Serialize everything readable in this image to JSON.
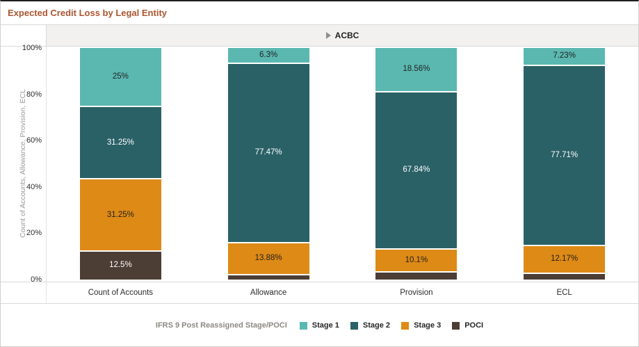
{
  "title": "Expected Credit Loss by Legal Entity",
  "header": {
    "group_label": "ACBC"
  },
  "y_axis": {
    "label": "Count of Accounts, Allowance, Provision, ECL",
    "ticks": [
      "100%",
      "80%",
      "60%",
      "40%",
      "20%",
      "0%"
    ]
  },
  "legend": {
    "title": "IFRS 9 Post Reassigned Stage/POCI",
    "position": "bottom",
    "items": [
      {
        "label": "Stage 1",
        "color": "#5bb8b1"
      },
      {
        "label": "Stage 2",
        "color": "#2a6167"
      },
      {
        "label": "Stage 3",
        "color": "#de8a16"
      },
      {
        "label": "POCI",
        "color": "#4c3e35"
      }
    ]
  },
  "chart_data": {
    "type": "bar",
    "stacked": true,
    "percent_stacked": true,
    "grid": false,
    "title": "Expected Credit Loss by Legal Entity",
    "xlabel": "",
    "ylabel": "Count of Accounts, Allowance, Provision, ECL",
    "ylim": [
      0,
      100
    ],
    "legend_position": "bottom",
    "categories": [
      "Count of Accounts",
      "Allowance",
      "Provision",
      "ECL"
    ],
    "series": [
      {
        "name": "Stage 1",
        "color": "#5bb8b1",
        "label_color": "#1f1f1f",
        "values": [
          25,
          6.3,
          18.56,
          7.23
        ],
        "labels": [
          "25%",
          "6.3%",
          "18.56%",
          "7.23%"
        ]
      },
      {
        "name": "Stage 2",
        "color": "#2a6167",
        "label_color": "#ffffff",
        "values": [
          31.25,
          77.47,
          67.84,
          77.71
        ],
        "labels": [
          "31.25%",
          "77.47%",
          "67.84%",
          "77.71%"
        ]
      },
      {
        "name": "Stage 3",
        "color": "#de8a16",
        "label_color": "#1f1f1f",
        "values": [
          31.25,
          13.88,
          10.1,
          12.17
        ],
        "labels": [
          "31.25%",
          "13.88%",
          "10.1%",
          "12.17%"
        ]
      },
      {
        "name": "POCI",
        "color": "#4c3e35",
        "label_color": "#ffffff",
        "values": [
          12.5,
          2.35,
          3.5,
          2.89
        ],
        "labels": [
          "12.5%",
          null,
          null,
          null
        ]
      }
    ]
  }
}
